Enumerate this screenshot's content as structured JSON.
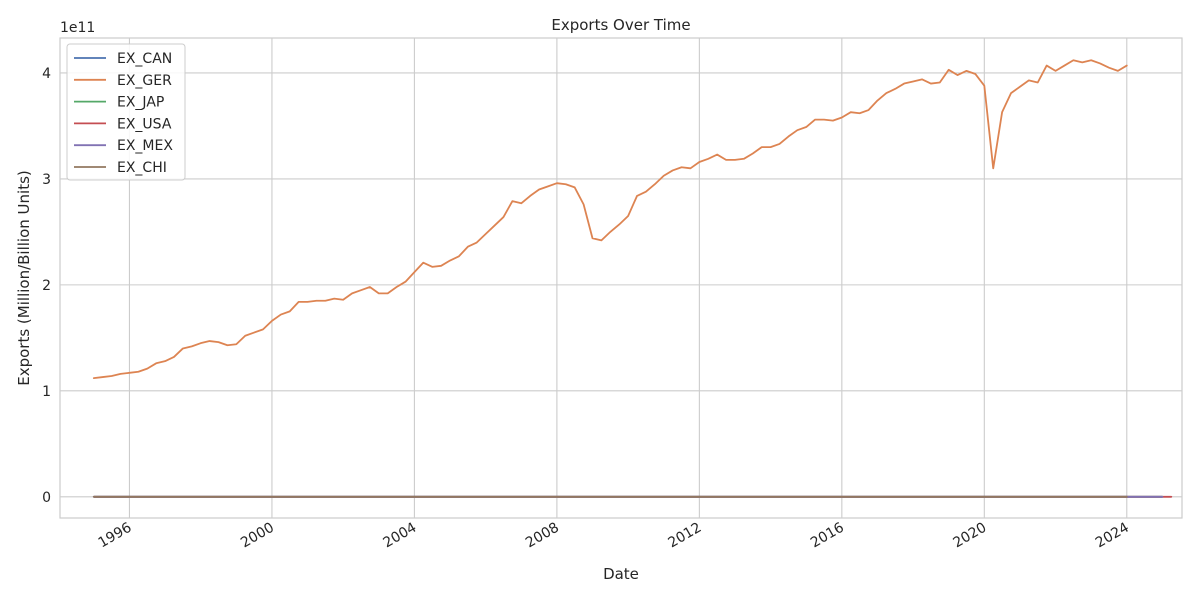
{
  "chart_data": {
    "type": "line",
    "title": "Exports Over Time",
    "xlabel": "Date",
    "ylabel": "Exports (Million/Billion Units)",
    "y_offset_text": "1e11",
    "ylim": [
      -0.2,
      4.33
    ],
    "xlim": [
      1994.05,
      2025.55
    ],
    "y_ticks": [
      0,
      1,
      2,
      3,
      4
    ],
    "y_tick_labels": [
      "0",
      "1",
      "2",
      "3",
      "4"
    ],
    "x_ticks": [
      1996,
      2000,
      2004,
      2008,
      2012,
      2016,
      2020,
      2024
    ],
    "x_tick_labels": [
      "1996",
      "2000",
      "2004",
      "2008",
      "2012",
      "2016",
      "2020",
      "2024"
    ],
    "grid": true,
    "legend_position": "top-left",
    "series": [
      {
        "name": "EX_CAN",
        "color": "#4c72b0",
        "x": [
          1995.0,
          2025.0
        ],
        "values": [
          0.0,
          0.0
        ]
      },
      {
        "name": "EX_GER",
        "color": "#dd8452",
        "x": [
          1995.0,
          1995.25,
          1995.5,
          1995.75,
          1996.0,
          1996.25,
          1996.5,
          1996.75,
          1997.0,
          1997.25,
          1997.5,
          1997.75,
          1998.0,
          1998.25,
          1998.5,
          1998.75,
          1999.0,
          1999.25,
          1999.5,
          1999.75,
          2000.0,
          2000.25,
          2000.5,
          2000.75,
          2001.0,
          2001.25,
          2001.5,
          2001.75,
          2002.0,
          2002.25,
          2002.5,
          2002.75,
          2003.0,
          2003.25,
          2003.5,
          2003.75,
          2004.0,
          2004.25,
          2004.5,
          2004.75,
          2005.0,
          2005.25,
          2005.5,
          2005.75,
          2006.0,
          2006.25,
          2006.5,
          2006.75,
          2007.0,
          2007.25,
          2007.5,
          2007.75,
          2008.0,
          2008.25,
          2008.5,
          2008.75,
          2009.0,
          2009.25,
          2009.5,
          2009.75,
          2010.0,
          2010.25,
          2010.5,
          2010.75,
          2011.0,
          2011.25,
          2011.5,
          2011.75,
          2012.0,
          2012.25,
          2012.5,
          2012.75,
          2013.0,
          2013.25,
          2013.5,
          2013.75,
          2014.0,
          2014.25,
          2014.5,
          2014.75,
          2015.0,
          2015.25,
          2015.5,
          2015.75,
          2016.0,
          2016.25,
          2016.5,
          2016.75,
          2017.0,
          2017.25,
          2017.5,
          2017.75,
          2018.0,
          2018.25,
          2018.5,
          2018.75,
          2019.0,
          2019.25,
          2019.5,
          2019.75,
          2020.0,
          2020.25,
          2020.5,
          2020.75,
          2021.0,
          2021.25,
          2021.5,
          2021.75,
          2022.0,
          2022.25,
          2022.5,
          2022.75,
          2023.0,
          2023.25,
          2023.5,
          2023.75,
          2024.0
        ],
        "values": [
          1.12,
          1.13,
          1.14,
          1.16,
          1.17,
          1.18,
          1.21,
          1.26,
          1.28,
          1.32,
          1.4,
          1.42,
          1.45,
          1.47,
          1.46,
          1.43,
          1.44,
          1.52,
          1.55,
          1.58,
          1.66,
          1.72,
          1.75,
          1.84,
          1.84,
          1.85,
          1.85,
          1.87,
          1.86,
          1.92,
          1.95,
          1.98,
          1.92,
          1.92,
          1.98,
          2.03,
          2.12,
          2.21,
          2.17,
          2.18,
          2.23,
          2.27,
          2.36,
          2.4,
          2.48,
          2.56,
          2.64,
          2.79,
          2.77,
          2.84,
          2.9,
          2.93,
          2.96,
          2.95,
          2.92,
          2.76,
          2.44,
          2.42,
          2.5,
          2.57,
          2.65,
          2.84,
          2.88,
          2.95,
          3.03,
          3.08,
          3.11,
          3.1,
          3.16,
          3.19,
          3.23,
          3.18,
          3.18,
          3.19,
          3.24,
          3.3,
          3.3,
          3.33,
          3.4,
          3.46,
          3.49,
          3.56,
          3.56,
          3.55,
          3.58,
          3.63,
          3.62,
          3.65,
          3.74,
          3.81,
          3.85,
          3.9,
          3.92,
          3.94,
          3.9,
          3.91,
          4.03,
          3.98,
          4.02,
          3.99,
          3.88,
          3.1,
          3.63,
          3.81,
          3.87,
          3.93,
          3.91,
          4.07,
          4.02,
          4.07,
          4.12,
          4.1,
          4.12,
          4.09,
          4.05,
          4.02,
          4.07
        ]
      },
      {
        "name": "EX_JAP",
        "color": "#55a868",
        "x": [
          1995.0,
          2025.0
        ],
        "values": [
          0.0,
          0.0
        ]
      },
      {
        "name": "EX_USA",
        "color": "#c44e52",
        "x": [
          1995.0,
          2025.25
        ],
        "values": [
          0.0,
          0.0
        ]
      },
      {
        "name": "EX_MEX",
        "color": "#8172b3",
        "x": [
          1995.0,
          2025.0
        ],
        "values": [
          0.0,
          0.0
        ]
      },
      {
        "name": "EX_CHI",
        "color": "#937860",
        "x": [
          1995.0,
          2024.0
        ],
        "values": [
          0.0,
          0.0
        ]
      }
    ]
  }
}
